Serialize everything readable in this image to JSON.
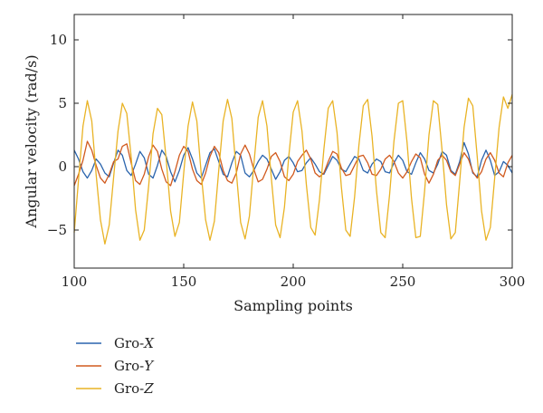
{
  "chart_data": {
    "type": "line",
    "title": "",
    "xlabel": "Sampling points",
    "ylabel": "Angular velocity (rad/s)",
    "xlim": [
      100,
      300
    ],
    "ylim": [
      -8,
      12
    ],
    "xticks": [
      100,
      150,
      200,
      250,
      300
    ],
    "yticks": [
      -5,
      0,
      5,
      10
    ],
    "grid": false,
    "legend": {
      "placement": "below-left"
    },
    "series": [
      {
        "key": "x",
        "name": "Gro-X",
        "name_prefix": "Gro-",
        "name_axis": "X",
        "color": "#2a64ad",
        "x": [
          100,
          102,
          104,
          106,
          108,
          110,
          112,
          114,
          116,
          118,
          120,
          122,
          124,
          126,
          128,
          130,
          132,
          134,
          136,
          138,
          140,
          142,
          144,
          146,
          148,
          150,
          152,
          154,
          156,
          158,
          160,
          162,
          164,
          166,
          168,
          170,
          172,
          174,
          176,
          178,
          180,
          182,
          184,
          186,
          188,
          190,
          192,
          194,
          196,
          198,
          200,
          202,
          204,
          206,
          208,
          210,
          212,
          214,
          216,
          218,
          220,
          222,
          224,
          226,
          228,
          230,
          232,
          234,
          236,
          238,
          240,
          242,
          244,
          246,
          248,
          250,
          252,
          254,
          256,
          258,
          260,
          262,
          264,
          266,
          268,
          270,
          272,
          274,
          276,
          278,
          280,
          282,
          284,
          286,
          288,
          290,
          292,
          294,
          296,
          298,
          300
        ],
        "y": [
          1.3,
          0.6,
          -0.4,
          -0.9,
          -0.3,
          0.6,
          0.2,
          -0.5,
          -0.8,
          0.3,
          1.3,
          0.9,
          -0.3,
          -0.7,
          0.2,
          1.2,
          0.7,
          -0.6,
          -0.9,
          0.1,
          1.3,
          0.8,
          -0.4,
          -1.2,
          -0.3,
          0.9,
          1.5,
          0.6,
          -0.5,
          -0.9,
          0.1,
          1.1,
          1.4,
          0.4,
          -0.6,
          -0.8,
          0.3,
          1.2,
          0.9,
          -0.5,
          -0.8,
          -0.3,
          0.4,
          0.9,
          0.6,
          -0.2,
          -1.0,
          -0.4,
          0.5,
          0.8,
          0.3,
          -0.4,
          -0.3,
          0.3,
          0.7,
          0.2,
          -0.4,
          -0.6,
          0.1,
          0.8,
          0.5,
          -0.2,
          -0.4,
          0.2,
          0.8,
          0.6,
          -0.3,
          -0.5,
          0.2,
          0.6,
          0.4,
          -0.4,
          -0.5,
          0.3,
          0.9,
          0.5,
          -0.4,
          -0.6,
          0.3,
          1.1,
          0.6,
          -0.3,
          -0.5,
          0.2,
          1.2,
          0.9,
          -0.3,
          -0.6,
          0.4,
          1.9,
          1.0,
          -0.5,
          -0.8,
          0.5,
          1.3,
          0.5,
          -0.7,
          -0.4,
          0.4,
          0.1,
          -0.5
        ]
      },
      {
        "key": "y",
        "name": "Gro-Y",
        "name_prefix": "Gro-",
        "name_axis": "Y",
        "color": "#d15a1e",
        "x": [
          100,
          102,
          104,
          106,
          108,
          110,
          112,
          114,
          116,
          118,
          120,
          122,
          124,
          126,
          128,
          130,
          132,
          134,
          136,
          138,
          140,
          142,
          144,
          146,
          148,
          150,
          152,
          154,
          156,
          158,
          160,
          162,
          164,
          166,
          168,
          170,
          172,
          174,
          176,
          178,
          180,
          182,
          184,
          186,
          188,
          190,
          192,
          194,
          196,
          198,
          200,
          202,
          204,
          206,
          208,
          210,
          212,
          214,
          216,
          218,
          220,
          222,
          224,
          226,
          228,
          230,
          232,
          234,
          236,
          238,
          240,
          242,
          244,
          246,
          248,
          250,
          252,
          254,
          256,
          258,
          260,
          262,
          264,
          266,
          268,
          270,
          272,
          274,
          276,
          278,
          280,
          282,
          284,
          286,
          288,
          290,
          292,
          294,
          296,
          298,
          300
        ],
        "y": [
          -1.5,
          -0.6,
          0.5,
          2.0,
          1.3,
          0.1,
          -0.9,
          -1.3,
          -0.6,
          0.4,
          0.6,
          1.6,
          1.8,
          0.3,
          -1.1,
          -1.4,
          -0.6,
          0.8,
          1.7,
          1.2,
          -0.2,
          -1.2,
          -1.5,
          -0.4,
          0.9,
          1.6,
          1.2,
          -0.2,
          -1.1,
          -1.4,
          -0.5,
          0.8,
          1.6,
          1.1,
          -0.3,
          -1.1,
          -1.3,
          -0.5,
          1.0,
          1.7,
          1.0,
          -0.2,
          -1.2,
          -1.0,
          -0.2,
          0.8,
          1.1,
          0.4,
          -0.8,
          -1.1,
          -0.6,
          0.4,
          0.9,
          1.3,
          0.6,
          -0.5,
          -0.8,
          -0.5,
          0.4,
          1.2,
          1.0,
          -0.1,
          -0.7,
          -0.6,
          0.1,
          0.8,
          0.9,
          0.3,
          -0.6,
          -0.7,
          -0.2,
          0.6,
          0.9,
          0.4,
          -0.5,
          -0.9,
          -0.4,
          0.4,
          1.0,
          0.7,
          -0.6,
          -1.3,
          -0.6,
          0.5,
          0.9,
          0.5,
          -0.4,
          -0.7,
          0.2,
          1.1,
          0.6,
          -0.4,
          -0.9,
          -0.4,
          0.6,
          1.1,
          0.5,
          -0.5,
          -0.8,
          0.3,
          0.9
        ]
      },
      {
        "key": "z",
        "name": "Gro-Z",
        "name_prefix": "Gro-",
        "name_axis": "Z",
        "color": "#e9b325",
        "x": [
          100,
          102,
          104,
          106,
          108,
          110,
          112,
          114,
          116,
          118,
          120,
          122,
          124,
          126,
          128,
          130,
          132,
          134,
          136,
          138,
          140,
          142,
          144,
          146,
          148,
          150,
          152,
          154,
          156,
          158,
          160,
          162,
          164,
          166,
          168,
          170,
          172,
          174,
          176,
          178,
          180,
          182,
          184,
          186,
          188,
          190,
          192,
          194,
          196,
          198,
          200,
          202,
          204,
          206,
          208,
          210,
          212,
          214,
          216,
          218,
          220,
          222,
          224,
          226,
          228,
          230,
          232,
          234,
          236,
          238,
          240,
          242,
          244,
          246,
          248,
          250,
          252,
          254,
          256,
          258,
          260,
          262,
          264,
          266,
          268,
          270,
          272,
          274,
          276,
          278,
          280,
          282,
          284,
          286,
          288,
          290,
          292,
          294,
          296,
          298,
          300
        ],
        "y": [
          -5.2,
          -1.0,
          3.2,
          5.2,
          3.6,
          -0.6,
          -4.2,
          -6.1,
          -4.6,
          -0.8,
          2.8,
          5.0,
          4.2,
          0.8,
          -3.4,
          -5.8,
          -5.0,
          -1.5,
          2.6,
          4.6,
          4.1,
          0.6,
          -3.5,
          -5.5,
          -4.4,
          -0.5,
          3.2,
          5.1,
          3.6,
          -0.6,
          -4.2,
          -5.8,
          -4.3,
          -0.3,
          3.6,
          5.3,
          3.8,
          -0.4,
          -4.4,
          -5.7,
          -3.9,
          0.1,
          3.9,
          5.2,
          3.2,
          -0.9,
          -4.6,
          -5.6,
          -3.2,
          0.9,
          4.3,
          5.2,
          2.8,
          -1.4,
          -4.8,
          -5.4,
          -2.6,
          1.4,
          4.6,
          5.2,
          2.7,
          -1.6,
          -5.0,
          -5.5,
          -2.4,
          1.7,
          4.8,
          5.3,
          2.4,
          -1.9,
          -5.2,
          -5.6,
          -2.2,
          2.0,
          5.0,
          5.2,
          1.9,
          -2.5,
          -5.6,
          -5.5,
          -1.9,
          2.5,
          5.2,
          4.9,
          1.2,
          -3.0,
          -5.7,
          -5.2,
          -1.2,
          3.1,
          5.4,
          4.8,
          0.8,
          -3.5,
          -5.8,
          -4.8,
          -0.9,
          3.1,
          5.5,
          4.6,
          5.7
        ]
      }
    ]
  }
}
